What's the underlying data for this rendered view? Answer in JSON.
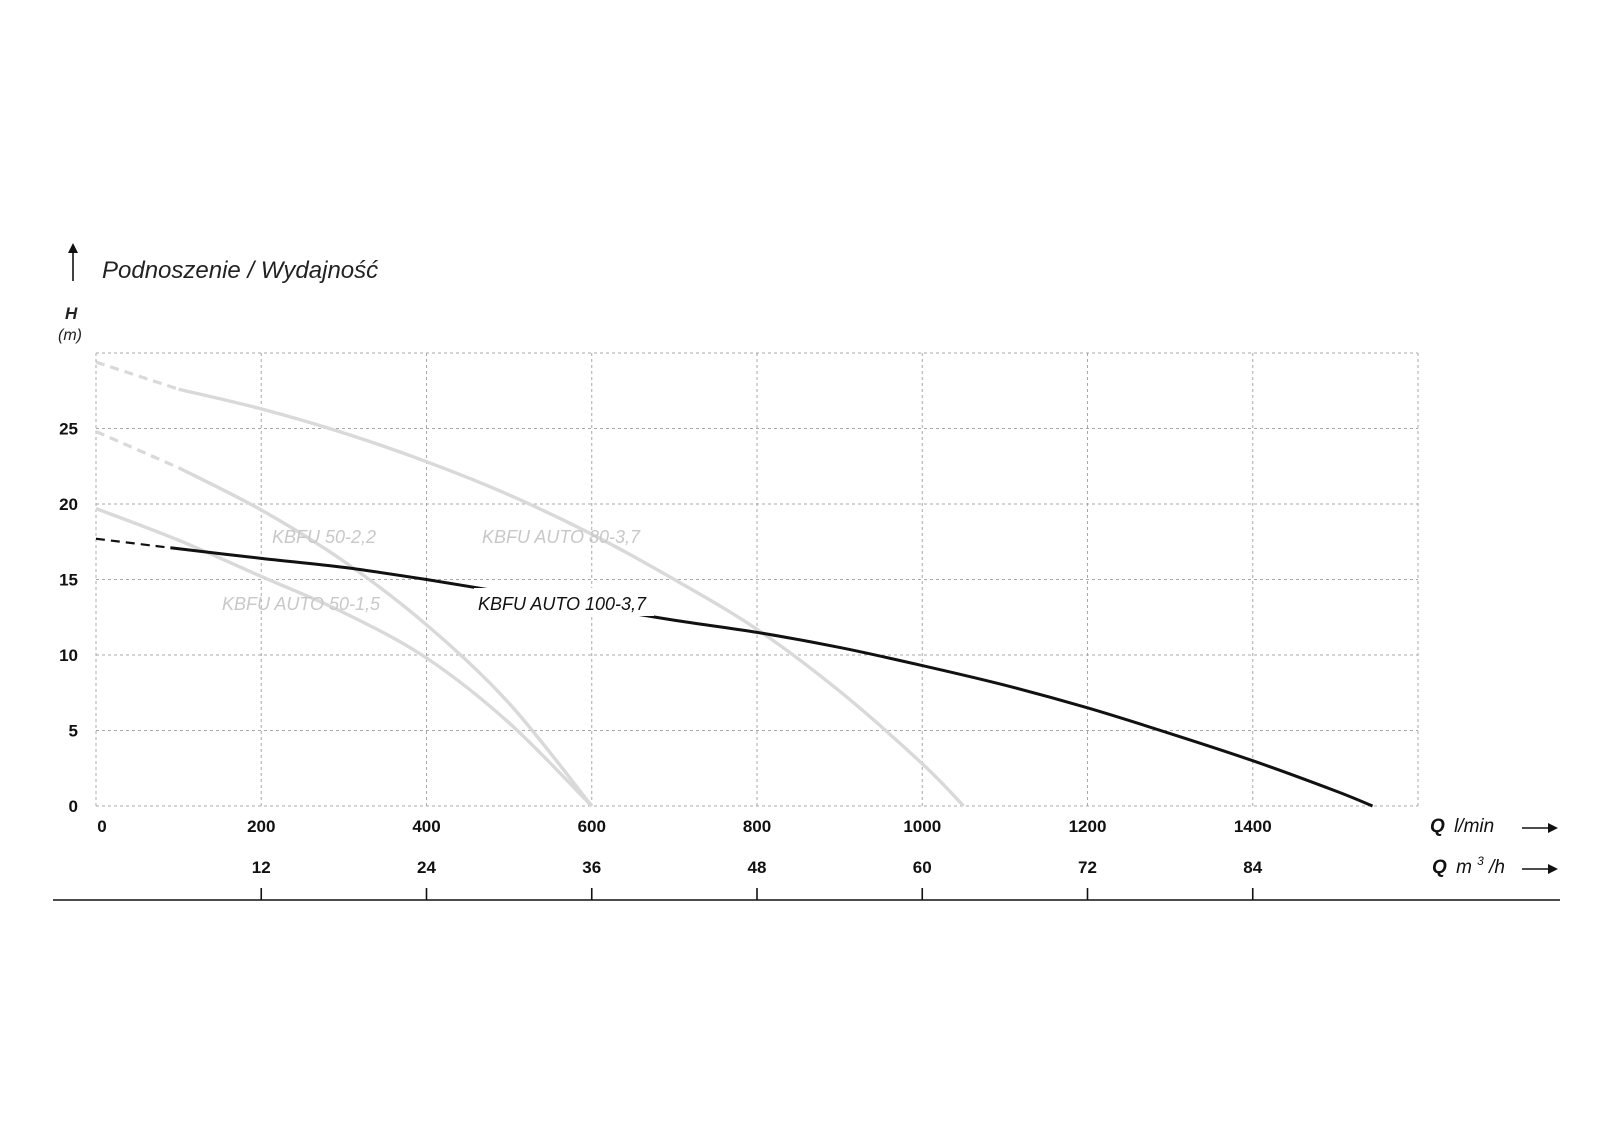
{
  "chart_data": {
    "type": "line",
    "title": "Podnoszenie / Wydajność",
    "ylabel": "H",
    "yunit": "(m)",
    "xlabel_primary": {
      "symbol": "Q",
      "unit": "l/min"
    },
    "xlabel_secondary": {
      "symbol": "Q",
      "unit": "m",
      "unit_sup": "3",
      "unit_suffix": "/h"
    },
    "xlim": [
      0,
      1600
    ],
    "ylim": [
      0,
      30
    ],
    "yticks": [
      0,
      5,
      10,
      15,
      20,
      25
    ],
    "xticks_primary": [
      0,
      200,
      400,
      600,
      800,
      1000,
      1200,
      1400
    ],
    "xticks_secondary": [
      {
        "at": 200,
        "label": "12"
      },
      {
        "at": 400,
        "label": "24"
      },
      {
        "at": 600,
        "label": "36"
      },
      {
        "at": 800,
        "label": "48"
      },
      {
        "at": 1000,
        "label": "60"
      },
      {
        "at": 1200,
        "label": "72"
      },
      {
        "at": 1400,
        "label": "84"
      }
    ],
    "grid": true,
    "series": [
      {
        "name": "KBFU AUTO 50-1,5",
        "color": "#d9d9d9",
        "dashed_until": 0,
        "x": [
          0,
          100,
          200,
          300,
          400,
          500,
          600
        ],
        "y": [
          19.7,
          17.6,
          15.2,
          12.8,
          9.8,
          5.5,
          0
        ]
      },
      {
        "name": "KBFU 50-2,2",
        "color": "#d9d9d9",
        "dashed_until": 100,
        "x": [
          0,
          100,
          200,
          300,
          400,
          500,
          600
        ],
        "y": [
          24.8,
          22.4,
          19.6,
          16.2,
          12.0,
          6.8,
          0
        ]
      },
      {
        "name": "KBFU AUTO 80-3,7",
        "color": "#d9d9d9",
        "dashed_until": 100,
        "x": [
          0,
          100,
          200,
          300,
          400,
          500,
          600,
          700,
          800,
          900,
          1000,
          1050
        ],
        "y": [
          29.4,
          27.6,
          26.3,
          24.7,
          22.8,
          20.6,
          18.0,
          15.0,
          11.7,
          7.6,
          2.8,
          0
        ]
      },
      {
        "name": "KBFU AUTO 100-3,7",
        "color": "#111111",
        "dashed_until": 90,
        "x": [
          0,
          90,
          200,
          300,
          400,
          500,
          600,
          700,
          800,
          900,
          1000,
          1100,
          1200,
          1300,
          1400,
          1500,
          1545
        ],
        "y": [
          17.7,
          17.1,
          16.4,
          15.8,
          15.0,
          14.1,
          13.2,
          12.3,
          11.5,
          10.5,
          9.3,
          8.0,
          6.5,
          4.8,
          3.0,
          1.0,
          0
        ]
      }
    ],
    "annotations": [
      {
        "text": "KBFU 50-2,2",
        "series": 1
      },
      {
        "text": "KBFU AUTO 80-3,7",
        "series": 2
      },
      {
        "text": "KBFU AUTO 50-1,5",
        "series": 0
      },
      {
        "text": "KBFU AUTO 100-3,7",
        "series": 3
      }
    ]
  }
}
